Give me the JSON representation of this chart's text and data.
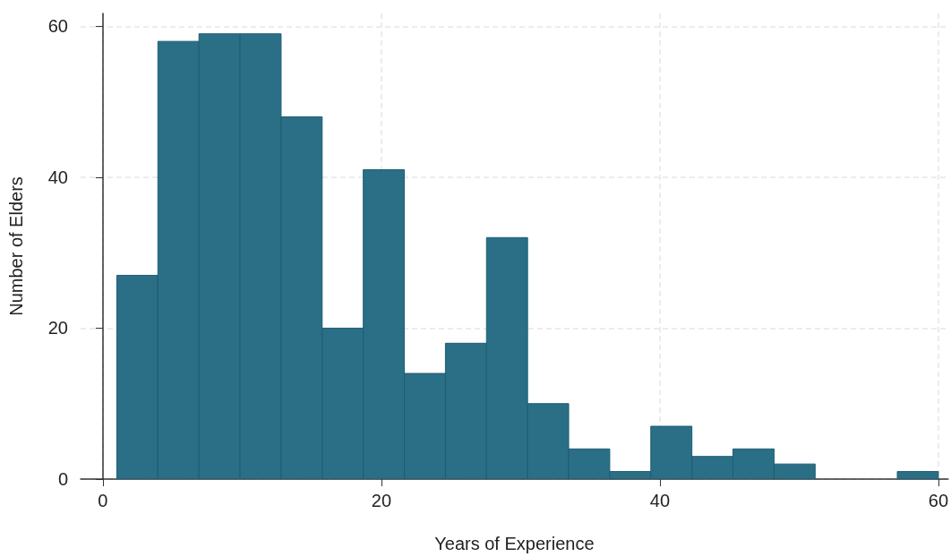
{
  "chart_data": {
    "type": "histogram",
    "xlabel": "Years of Experience",
    "ylabel": "Number of Elders",
    "bins": [
      1,
      3.95,
      6.9,
      9.85,
      12.8,
      15.75,
      18.7,
      21.65,
      24.6,
      27.55,
      30.5,
      33.45,
      36.4,
      39.35,
      42.3,
      45.25,
      48.2,
      51.15,
      54.1,
      57.05,
      60
    ],
    "values": [
      27,
      58,
      59,
      59,
      48,
      20,
      41,
      14,
      18,
      32,
      10,
      4,
      1,
      7,
      3,
      4,
      2,
      0,
      0,
      1
    ],
    "color": "#2a6f86",
    "xlim": [
      -1.6,
      60.7
    ],
    "xticks": [
      0,
      20,
      40,
      60
    ],
    "ylim": [
      0,
      61.7
    ],
    "yticks": [
      0,
      20,
      40,
      60
    ],
    "grid": true
  }
}
